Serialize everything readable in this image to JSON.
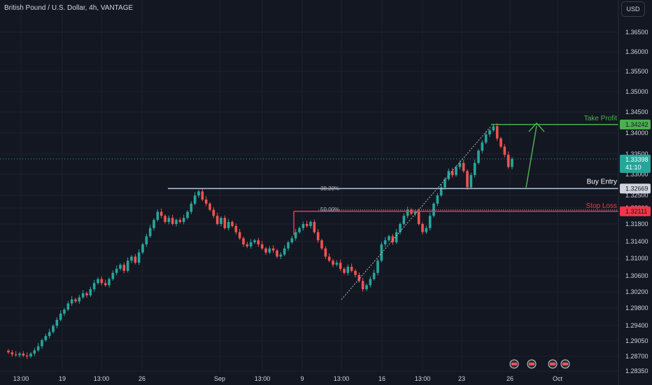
{
  "title": "British Pound / U.S. Dollar, 4h, VANTAGE",
  "currency_button": "USD",
  "colors": {
    "background": "#131722",
    "grid": "#1c2030",
    "up": "#26a69a",
    "down": "#ef5350",
    "take_profit": "#4caf50",
    "stop_loss": "#f23645",
    "entry": "#b2c7e0",
    "text": "#d1d4dc"
  },
  "chart_data": {
    "type": "candlestick",
    "y_ticks": [
      "1.36500",
      "1.36000",
      "1.35500",
      "1.35000",
      "1.34500",
      "1.34000",
      "1.33500",
      "1.33000",
      "1.32500",
      "1.32200",
      "1.31800",
      "1.31400",
      "1.31000",
      "1.30600",
      "1.30200",
      "1.29800",
      "1.29400",
      "1.29050",
      "1.28700",
      "1.28350"
    ],
    "x_ticks": [
      "13:00",
      "19",
      "13:00",
      "26",
      "Sep",
      "13:00",
      "9",
      "13:00",
      "16",
      "13:00",
      "23",
      "26",
      "Oct"
    ],
    "levels": [
      {
        "label": "Take Profit",
        "price": "1.34242"
      },
      {
        "label": "Buy Entry",
        "price": "1.32669"
      },
      {
        "label": "Stop Loss",
        "price": "1.32111"
      }
    ],
    "current_price": {
      "price": "1.33398",
      "countdown": "41:10"
    },
    "fib_labels": [
      "38.20%",
      "50.00%"
    ],
    "closes": [
      1.2865,
      1.286,
      1.2858,
      1.2862,
      1.2857,
      1.2855,
      1.2862,
      1.287,
      1.288,
      1.2895,
      1.2905,
      1.2915,
      1.293,
      1.2945,
      1.296,
      1.297,
      1.2985,
      1.2995,
      1.299,
      1.3,
      1.301,
      1.3005,
      1.302,
      1.3035,
      1.3045,
      1.3035,
      1.303,
      1.3045,
      1.306,
      1.307,
      1.308,
      1.3065,
      1.309,
      1.31,
      1.3085,
      1.311,
      1.313,
      1.315,
      1.317,
      1.319,
      1.321,
      1.32,
      1.3185,
      1.3195,
      1.318,
      1.319,
      1.3185,
      1.3195,
      1.321,
      1.323,
      1.325,
      1.326,
      1.324,
      1.323,
      1.3215,
      1.32,
      1.318,
      1.3195,
      1.317,
      1.3185,
      1.3175,
      1.316,
      1.3145,
      1.313,
      1.3125,
      1.3135,
      1.314,
      1.313,
      1.312,
      1.311,
      1.312,
      1.3115,
      1.31,
      1.3105,
      1.312,
      1.3135,
      1.3145,
      1.316,
      1.317,
      1.318,
      1.3175,
      1.3185,
      1.316,
      1.314,
      1.312,
      1.31,
      1.309,
      1.308,
      1.3085,
      1.307,
      1.306,
      1.3075,
      1.3065,
      1.3055,
      1.304,
      1.302,
      1.303,
      1.3045,
      1.306,
      1.309,
      1.313,
      1.314,
      1.315,
      1.3135,
      1.316,
      1.318,
      1.32,
      1.3215,
      1.3205,
      1.321,
      1.318,
      1.316,
      1.317,
      1.32,
      1.323,
      1.325,
      1.327,
      1.329,
      1.331,
      1.33,
      1.332,
      1.333,
      1.331,
      1.327,
      1.33,
      1.333,
      1.336,
      1.338,
      1.34,
      1.341,
      1.342,
      1.339,
      1.337,
      1.335,
      1.332,
      1.334
    ]
  }
}
